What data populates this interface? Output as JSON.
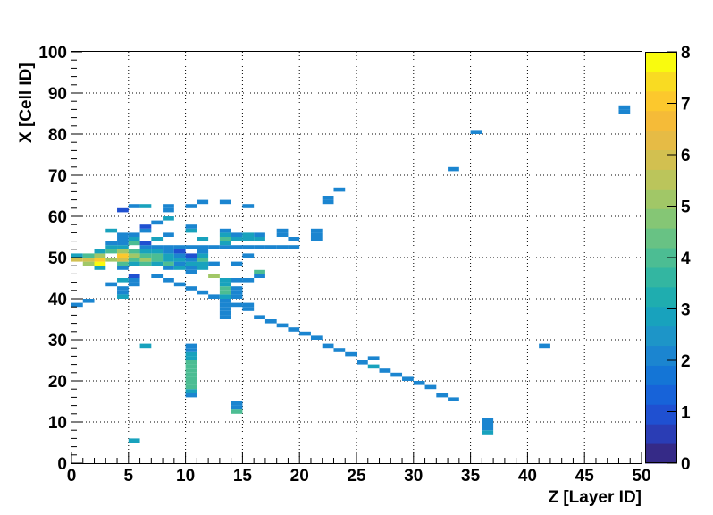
{
  "chart_data": {
    "type": "heatmap",
    "title": "",
    "xlabel": "Z [Layer ID]",
    "ylabel": "X [Cell ID]",
    "xlim": [
      0,
      50
    ],
    "ylim": [
      0,
      100
    ],
    "zlim": [
      0,
      8
    ],
    "bin_width_x": 1,
    "bin_width_y": 1,
    "x_ticks": [
      0,
      5,
      10,
      15,
      20,
      25,
      30,
      35,
      40,
      45,
      50
    ],
    "y_ticks": [
      0,
      10,
      20,
      30,
      40,
      50,
      60,
      70,
      80,
      90,
      100
    ],
    "z_ticks": [
      0,
      1,
      2,
      3,
      4,
      5,
      6,
      7,
      8
    ],
    "grid": true,
    "colorbar": "right",
    "palette": [
      "#352a87",
      "#2a3db5",
      "#1f50d1",
      "#1763d9",
      "#1475d6",
      "#1b85d0",
      "#1d95c8",
      "#18a2bd",
      "#1fadaf",
      "#33b6a1",
      "#4cbd93",
      "#68c284",
      "#85c675",
      "#a1c767",
      "#bbc55b",
      "#d2c050",
      "#e6bb45",
      "#f5bb38",
      "#fcc82d",
      "#f9db22",
      "#f9fb0e"
    ],
    "cells": [
      [
        0,
        38,
        2
      ],
      [
        0,
        49,
        6
      ],
      [
        0,
        50,
        3
      ],
      [
        1,
        39,
        2
      ],
      [
        1,
        48,
        5
      ],
      [
        1,
        49,
        6
      ],
      [
        1,
        50,
        4
      ],
      [
        2,
        47,
        3
      ],
      [
        2,
        48,
        8
      ],
      [
        2,
        49,
        7
      ],
      [
        2,
        50,
        5
      ],
      [
        2,
        51,
        3
      ],
      [
        3,
        43,
        2
      ],
      [
        3,
        49,
        5
      ],
      [
        3,
        51,
        4
      ],
      [
        3,
        52,
        3
      ],
      [
        3,
        53,
        2
      ],
      [
        3,
        56,
        3
      ],
      [
        4,
        40,
        3
      ],
      [
        4,
        41,
        2
      ],
      [
        4,
        42,
        2
      ],
      [
        4,
        44,
        3
      ],
      [
        4,
        47,
        2
      ],
      [
        4,
        48,
        4
      ],
      [
        4,
        49,
        6
      ],
      [
        4,
        50,
        7
      ],
      [
        4,
        51,
        5
      ],
      [
        4,
        52,
        3
      ],
      [
        4,
        53,
        2
      ],
      [
        4,
        54,
        2
      ],
      [
        4,
        55,
        2
      ],
      [
        4,
        61,
        1
      ],
      [
        5,
        5,
        3
      ],
      [
        5,
        43,
        2
      ],
      [
        5,
        44,
        2
      ],
      [
        5,
        45,
        1
      ],
      [
        5,
        48,
        3
      ],
      [
        5,
        49,
        4
      ],
      [
        5,
        50,
        5
      ],
      [
        5,
        51,
        4
      ],
      [
        5,
        53,
        4
      ],
      [
        5,
        54,
        3
      ],
      [
        5,
        55,
        2
      ],
      [
        5,
        62,
        2
      ],
      [
        6,
        28,
        3
      ],
      [
        6,
        48,
        4
      ],
      [
        6,
        49,
        5
      ],
      [
        6,
        50,
        4
      ],
      [
        6,
        51,
        3
      ],
      [
        6,
        52,
        2
      ],
      [
        6,
        53,
        1
      ],
      [
        6,
        56,
        2
      ],
      [
        6,
        57,
        1
      ],
      [
        6,
        62,
        3
      ],
      [
        7,
        45,
        2
      ],
      [
        7,
        48,
        3
      ],
      [
        7,
        49,
        4
      ],
      [
        7,
        50,
        4
      ],
      [
        7,
        51,
        3
      ],
      [
        7,
        52,
        2
      ],
      [
        7,
        54,
        3
      ],
      [
        7,
        58,
        2
      ],
      [
        8,
        44,
        2
      ],
      [
        8,
        47,
        2
      ],
      [
        8,
        48,
        4
      ],
      [
        8,
        49,
        3
      ],
      [
        8,
        50,
        3
      ],
      [
        8,
        51,
        2
      ],
      [
        8,
        52,
        2
      ],
      [
        8,
        55,
        2
      ],
      [
        8,
        59,
        3
      ],
      [
        8,
        61,
        2
      ],
      [
        8,
        62,
        2
      ],
      [
        9,
        43,
        2
      ],
      [
        9,
        47,
        3
      ],
      [
        9,
        48,
        2
      ],
      [
        9,
        49,
        3
      ],
      [
        9,
        50,
        2
      ],
      [
        9,
        51,
        1
      ],
      [
        9,
        52,
        2
      ],
      [
        10,
        16,
        2
      ],
      [
        10,
        17,
        3
      ],
      [
        10,
        18,
        4
      ],
      [
        10,
        19,
        4
      ],
      [
        10,
        20,
        4
      ],
      [
        10,
        21,
        4
      ],
      [
        10,
        22,
        4
      ],
      [
        10,
        23,
        4
      ],
      [
        10,
        24,
        4
      ],
      [
        10,
        25,
        3
      ],
      [
        10,
        26,
        3
      ],
      [
        10,
        27,
        2
      ],
      [
        10,
        28,
        2
      ],
      [
        10,
        42,
        2
      ],
      [
        10,
        46,
        2
      ],
      [
        10,
        47,
        2
      ],
      [
        10,
        48,
        3
      ],
      [
        10,
        49,
        2
      ],
      [
        10,
        50,
        1
      ],
      [
        10,
        52,
        2
      ],
      [
        10,
        56,
        3
      ],
      [
        10,
        57,
        2
      ],
      [
        10,
        62,
        2
      ],
      [
        11,
        41,
        2
      ],
      [
        11,
        47,
        3
      ],
      [
        11,
        48,
        3
      ],
      [
        11,
        49,
        4
      ],
      [
        11,
        50,
        3
      ],
      [
        11,
        51,
        2
      ],
      [
        11,
        52,
        2
      ],
      [
        11,
        54,
        3
      ],
      [
        11,
        63,
        2
      ],
      [
        12,
        40,
        2
      ],
      [
        12,
        45,
        5
      ],
      [
        12,
        48,
        2
      ],
      [
        12,
        52,
        2
      ],
      [
        13,
        35,
        2
      ],
      [
        13,
        36,
        2
      ],
      [
        13,
        37,
        2
      ],
      [
        13,
        38,
        2
      ],
      [
        13,
        39,
        2
      ],
      [
        13,
        40,
        3
      ],
      [
        13,
        41,
        4
      ],
      [
        13,
        42,
        4
      ],
      [
        13,
        43,
        3
      ],
      [
        13,
        44,
        3
      ],
      [
        13,
        52,
        2
      ],
      [
        13,
        53,
        3
      ],
      [
        13,
        54,
        4
      ],
      [
        13,
        55,
        3
      ],
      [
        13,
        56,
        2
      ],
      [
        13,
        63,
        2
      ],
      [
        14,
        12,
        4
      ],
      [
        14,
        13,
        2
      ],
      [
        14,
        14,
        2
      ],
      [
        14,
        38,
        2
      ],
      [
        14,
        40,
        2
      ],
      [
        14,
        41,
        2
      ],
      [
        14,
        42,
        2
      ],
      [
        14,
        44,
        2
      ],
      [
        14,
        48,
        2
      ],
      [
        14,
        52,
        2
      ],
      [
        14,
        54,
        3
      ],
      [
        14,
        55,
        2
      ],
      [
        15,
        37,
        2
      ],
      [
        15,
        38,
        2
      ],
      [
        15,
        44,
        2
      ],
      [
        15,
        50,
        2
      ],
      [
        15,
        52,
        2
      ],
      [
        15,
        54,
        3
      ],
      [
        15,
        55,
        3
      ],
      [
        15,
        62,
        2
      ],
      [
        16,
        35,
        2
      ],
      [
        16,
        45,
        2
      ],
      [
        16,
        46,
        4
      ],
      [
        16,
        52,
        2
      ],
      [
        16,
        54,
        3
      ],
      [
        16,
        55,
        2
      ],
      [
        17,
        34,
        2
      ],
      [
        17,
        52,
        2
      ],
      [
        18,
        33,
        2
      ],
      [
        18,
        52,
        2
      ],
      [
        18,
        55,
        2
      ],
      [
        18,
        56,
        2
      ],
      [
        19,
        32,
        2
      ],
      [
        19,
        52,
        2
      ],
      [
        19,
        54,
        2
      ],
      [
        20,
        31,
        2
      ],
      [
        21,
        30,
        2
      ],
      [
        21,
        54,
        2
      ],
      [
        21,
        55,
        2
      ],
      [
        21,
        56,
        2
      ],
      [
        22,
        28,
        2
      ],
      [
        22,
        63,
        2
      ],
      [
        22,
        64,
        2
      ],
      [
        23,
        27,
        2
      ],
      [
        23,
        66,
        2
      ],
      [
        24,
        26,
        2
      ],
      [
        25,
        24,
        2
      ],
      [
        26,
        23,
        3
      ],
      [
        26,
        25,
        2
      ],
      [
        27,
        22,
        2
      ],
      [
        28,
        21,
        2
      ],
      [
        29,
        20,
        2
      ],
      [
        30,
        19,
        2
      ],
      [
        31,
        18,
        2
      ],
      [
        32,
        16,
        2
      ],
      [
        33,
        15,
        2
      ],
      [
        33,
        71,
        2
      ],
      [
        35,
        80,
        2
      ],
      [
        36,
        7,
        3
      ],
      [
        36,
        8,
        2
      ],
      [
        36,
        9,
        2
      ],
      [
        36,
        10,
        2
      ],
      [
        41,
        28,
        2
      ],
      [
        48,
        85,
        2
      ],
      [
        48,
        86,
        2
      ]
    ]
  }
}
